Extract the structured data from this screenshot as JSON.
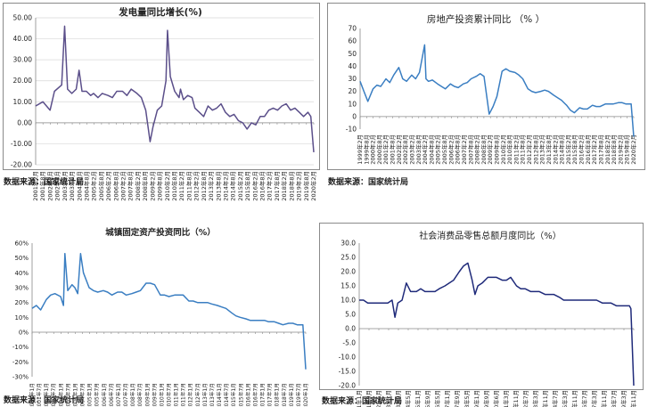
{
  "source_label": "数据来源：国家统计局",
  "chart_data": [
    {
      "id": "c1",
      "type": "line",
      "title": "发电量同比增长(%)",
      "xlabel": "",
      "ylabel": "",
      "ylim": [
        -20,
        50
      ],
      "yticks": [
        "-20.00",
        "-10.00",
        "0.00",
        "10.00",
        "20.00",
        "30.00",
        "40.00",
        "50.00"
      ],
      "grid": true,
      "color": "#5b4f8a",
      "x_tick_labels": [
        "2001年2月",
        "2001年8月",
        "2002年2月",
        "2002年8月",
        "2003年2月",
        "2003年8月",
        "2004年2月",
        "2004年8月",
        "2005年2月",
        "2005年8月",
        "2006年2月",
        "2006年8月",
        "2007年2月",
        "2007年8月",
        "2008年2月",
        "2008年8月",
        "2009年2月",
        "2009年8月",
        "2010年2月",
        "2010年8月",
        "2011年2月",
        "2011年8月",
        "2012年2月",
        "2012年8月",
        "2013年2月",
        "2013年8月",
        "2014年2月",
        "2014年8月",
        "2015年2月",
        "2015年8月",
        "2016年2月",
        "2016年8月",
        "2017年2月",
        "2017年8月",
        "2018年2月",
        "2018年8月",
        "2019年2月",
        "2019年8月",
        "2020年2月"
      ],
      "x": [
        2001.0,
        2001.5,
        2002.0,
        2002.3,
        2002.8,
        2003.0,
        2003.2,
        2003.5,
        2003.8,
        2004.0,
        2004.2,
        2004.5,
        2004.8,
        2005.0,
        2005.3,
        2005.6,
        2006.0,
        2006.3,
        2006.6,
        2007.0,
        2007.3,
        2007.6,
        2008.0,
        2008.3,
        2008.6,
        2008.9,
        2009.1,
        2009.4,
        2009.7,
        2010.0,
        2010.1,
        2010.3,
        2010.6,
        2010.9,
        2011.0,
        2011.2,
        2011.5,
        2011.8,
        2012.0,
        2012.3,
        2012.6,
        2012.9,
        2013.2,
        2013.5,
        2013.8,
        2014.1,
        2014.4,
        2014.7,
        2015.0,
        2015.3,
        2015.6,
        2015.9,
        2016.2,
        2016.5,
        2016.8,
        2017.1,
        2017.4,
        2017.7,
        2018.0,
        2018.3,
        2018.6,
        2018.9,
        2019.2,
        2019.5,
        2019.8,
        2020.0,
        2020.2
      ],
      "y": [
        8,
        10,
        6,
        15,
        18,
        46,
        16,
        14,
        16,
        25,
        15,
        15,
        13,
        14,
        12,
        14,
        13,
        12,
        15,
        15,
        13,
        16,
        14,
        12,
        6,
        -9,
        -2,
        6,
        8,
        20,
        44,
        22,
        15,
        12,
        16,
        11,
        13,
        12,
        7,
        5,
        3,
        8,
        6,
        7,
        9,
        5,
        3,
        4,
        1,
        0,
        -3,
        0,
        -1,
        3,
        3,
        6,
        7,
        6,
        8,
        9,
        6,
        7,
        5,
        3,
        5,
        3,
        -14
      ]
    },
    {
      "id": "c2",
      "type": "line",
      "title": "房地产投资累计同比 （% ）",
      "xlabel": "",
      "ylabel": "",
      "ylim": [
        -10,
        70
      ],
      "yticks": [
        "-10",
        "0",
        "10",
        "20",
        "30",
        "40",
        "50",
        "60",
        "70"
      ],
      "grid": false,
      "color": "#3a7ec2",
      "x_tick_labels": [
        "1999年2月",
        "1999年8月",
        "2000年2月",
        "2000年8月",
        "2001年2月",
        "2001年8月",
        "2002年2月",
        "2002年8月",
        "2003年2月",
        "2003年8月",
        "2004年2月",
        "2004年8月",
        "2005年2月",
        "2005年8月",
        "2006年2月",
        "2006年8月",
        "2007年2月",
        "2007年8月",
        "2008年2月",
        "2008年8月",
        "2009年2月",
        "2009年8月",
        "2010年2月",
        "2010年8月",
        "2011年2月",
        "2011年8月",
        "2012年2月",
        "2012年8月",
        "2013年2月",
        "2013年8月",
        "2014年2月",
        "2014年8月",
        "2015年2月",
        "2015年8月",
        "2016年2月",
        "2016年8月",
        "2017年2月",
        "2017年8月",
        "2018年2月",
        "2018年8月",
        "2019年2月",
        "2019年8月",
        "2020年2月"
      ],
      "x": [
        1999.0,
        1999.3,
        1999.6,
        2000.0,
        2000.3,
        2000.6,
        2001.0,
        2001.3,
        2001.6,
        2002.0,
        2002.3,
        2002.6,
        2003.0,
        2003.3,
        2003.6,
        2004.0,
        2004.1,
        2004.3,
        2004.6,
        2005.0,
        2005.3,
        2005.6,
        2006.0,
        2006.3,
        2006.6,
        2007.0,
        2007.3,
        2007.6,
        2008.0,
        2008.3,
        2008.6,
        2009.0,
        2009.3,
        2009.6,
        2010.0,
        2010.3,
        2010.6,
        2011.0,
        2011.3,
        2011.6,
        2012.0,
        2012.3,
        2012.6,
        2013.0,
        2013.3,
        2013.6,
        2014.0,
        2014.3,
        2014.6,
        2015.0,
        2015.3,
        2015.6,
        2016.0,
        2016.3,
        2016.6,
        2017.0,
        2017.3,
        2017.6,
        2018.0,
        2018.3,
        2018.6,
        2019.0,
        2019.3,
        2019.6,
        2019.9,
        2020.0,
        2020.2
      ],
      "y": [
        28,
        20,
        12,
        22,
        25,
        24,
        30,
        27,
        33,
        39,
        30,
        28,
        33,
        30,
        35,
        57,
        30,
        28,
        29,
        26,
        24,
        22,
        26,
        24,
        23,
        26,
        27,
        30,
        32,
        34,
        32,
        2,
        8,
        16,
        36,
        38,
        36,
        35,
        33,
        30,
        22,
        20,
        19,
        20,
        21,
        20,
        17,
        15,
        13,
        9,
        5,
        3,
        7,
        6,
        6,
        9,
        8,
        8,
        10,
        10,
        10,
        11,
        11,
        10,
        10,
        10,
        -16
      ]
    },
    {
      "id": "c3",
      "type": "line",
      "title": "城镇固定资产投资同比（%）",
      "xlabel": "",
      "ylabel": "",
      "ylim": [
        -30,
        60
      ],
      "yticks": [
        "-30%",
        "-20%",
        "-10%",
        "0%",
        "10%",
        "20%",
        "30%",
        "40%",
        "50%",
        "60%"
      ],
      "grid": false,
      "color": "#3a7ec2",
      "x_tick_labels": [
        "2001年1月",
        "2001年7月",
        "2002年1月",
        "2002年7月",
        "2003年1月",
        "2003年7月",
        "2004年1月",
        "2004年7月",
        "2005年1月",
        "2005年7月",
        "2006年1月",
        "2006年7月",
        "2007年1月",
        "2007年7月",
        "2008年1月",
        "2008年7月",
        "2009年1月",
        "2009年7月",
        "2010年1月",
        "2010年7月",
        "2011年1月",
        "2011年7月",
        "2012年1月",
        "2012年7月",
        "2013年1月",
        "2013年7月",
        "2014年1月",
        "2014年7月",
        "2015年1月",
        "2015年7月",
        "2016年1月",
        "2016年7月",
        "2017年1月",
        "2017年7月",
        "2018年1月",
        "2018年7月",
        "2019年1月",
        "2019年7月",
        "2020年1月"
      ],
      "x": [
        2001.0,
        2001.3,
        2001.6,
        2002.0,
        2002.3,
        2002.6,
        2003.0,
        2003.2,
        2003.3,
        2003.5,
        2003.8,
        2004.0,
        2004.2,
        2004.4,
        2004.6,
        2005.0,
        2005.3,
        2005.6,
        2006.0,
        2006.3,
        2006.6,
        2007.0,
        2007.3,
        2007.6,
        2008.0,
        2008.3,
        2008.6,
        2009.0,
        2009.3,
        2009.6,
        2010.0,
        2010.3,
        2010.6,
        2011.0,
        2011.3,
        2011.6,
        2012.0,
        2012.3,
        2012.6,
        2013.0,
        2013.3,
        2013.6,
        2014.0,
        2014.3,
        2014.6,
        2015.0,
        2015.3,
        2015.6,
        2016.0,
        2016.3,
        2016.6,
        2017.0,
        2017.3,
        2017.6,
        2018.0,
        2018.3,
        2018.6,
        2019.0,
        2019.3,
        2019.6,
        2019.9,
        2020.0,
        2020.2
      ],
      "y": [
        16,
        18,
        15,
        22,
        25,
        26,
        24,
        18,
        53,
        28,
        32,
        30,
        26,
        53,
        40,
        30,
        28,
        27,
        28,
        27,
        25,
        27,
        27,
        25,
        26,
        27,
        28,
        33,
        33,
        32,
        25,
        25,
        24,
        25,
        25,
        25,
        21,
        21,
        20,
        20,
        20,
        19,
        18,
        17,
        16,
        13,
        11,
        10,
        9,
        8,
        8,
        8,
        8,
        7,
        7,
        6,
        5,
        6,
        6,
        5,
        5,
        5,
        -25
      ]
    },
    {
      "id": "c4",
      "type": "line",
      "title": "社会消费品零售总额月度同比（%）",
      "xlabel": "",
      "ylabel": "",
      "ylim": [
        -20,
        30
      ],
      "yticks": [
        "-20.0",
        "-15.0",
        "-10.0",
        "-5.0",
        "0.0",
        "5.0",
        "10.0",
        "15.0",
        "20.0",
        "25.0",
        "30.0"
      ],
      "grid": false,
      "color": "#1f2a7a",
      "x_tick_labels": [
        "2001年1月",
        "2001年9月",
        "2002年5月",
        "2003年1月",
        "2003年9月",
        "2004年5月",
        "2005年1月",
        "2005年9月",
        "2006年5月",
        "2007年1月",
        "2007年9月",
        "2008年5月",
        "2009年1月",
        "2009年9月",
        "2010年6月",
        "2011年3月",
        "2011年11月",
        "2012年7月",
        "2013年3月",
        "2013年11月",
        "2014年7月",
        "2015年3月",
        "2015年11月",
        "2016年7月",
        "2017年3月",
        "2017年11月",
        "2018年7月",
        "2019年3月",
        "2019年11月"
      ],
      "x": [
        2001.0,
        2001.3,
        2001.6,
        2002.0,
        2002.3,
        2002.6,
        2003.0,
        2003.3,
        2003.5,
        2003.7,
        2004.0,
        2004.3,
        2004.6,
        2005.0,
        2005.3,
        2005.6,
        2006.0,
        2006.3,
        2006.6,
        2007.0,
        2007.3,
        2007.6,
        2008.0,
        2008.3,
        2008.6,
        2008.9,
        2009.1,
        2009.3,
        2009.6,
        2010.0,
        2010.3,
        2010.6,
        2011.0,
        2011.3,
        2011.6,
        2012.0,
        2012.3,
        2012.6,
        2013.0,
        2013.3,
        2013.6,
        2014.0,
        2014.3,
        2014.6,
        2015.0,
        2015.3,
        2015.6,
        2016.0,
        2016.3,
        2016.6,
        2017.0,
        2017.3,
        2017.6,
        2018.0,
        2018.3,
        2018.6,
        2019.0,
        2019.3,
        2019.6,
        2019.9,
        2020.0,
        2020.2
      ],
      "y": [
        10,
        10,
        9,
        9,
        9,
        9,
        9,
        10,
        4,
        9,
        10,
        16,
        13,
        13,
        14,
        13,
        13,
        13,
        14,
        15,
        16,
        17,
        20,
        22,
        23,
        17,
        12,
        15,
        16,
        18,
        18,
        18,
        17,
        17,
        18,
        15,
        14,
        14,
        13,
        13,
        13,
        12,
        12,
        12,
        11,
        10,
        10,
        10,
        10,
        10,
        10,
        10,
        10,
        9,
        9,
        9,
        8,
        8,
        8,
        8,
        7,
        -20
      ]
    }
  ]
}
